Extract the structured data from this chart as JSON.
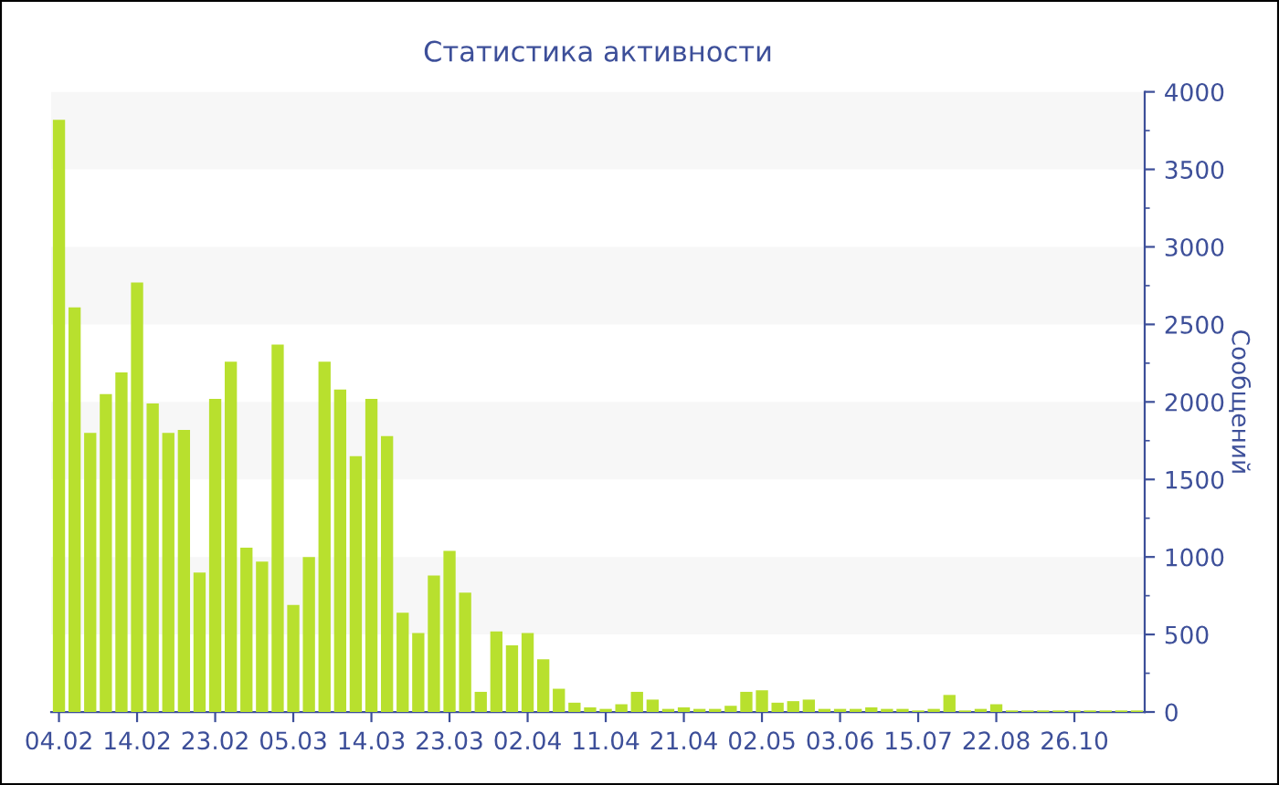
{
  "chart_data": {
    "type": "bar",
    "title": "Статистика активности",
    "ylabel": "Сообщений",
    "categories": [
      "04.02",
      null,
      null,
      null,
      null,
      "14.02",
      null,
      null,
      null,
      null,
      "23.02",
      null,
      null,
      null,
      null,
      "05.03",
      null,
      null,
      null,
      null,
      "14.03",
      null,
      null,
      null,
      null,
      "23.03",
      null,
      null,
      null,
      null,
      "02.04",
      null,
      null,
      null,
      null,
      "11.04",
      null,
      null,
      null,
      null,
      "21.04",
      null,
      null,
      null,
      null,
      "02.05",
      null,
      null,
      null,
      null,
      "03.06",
      null,
      null,
      null,
      null,
      "15.07",
      null,
      null,
      null,
      null,
      "22.08",
      null,
      null,
      null,
      null,
      "26.10",
      null,
      null,
      null,
      null
    ],
    "values": [
      3820,
      2610,
      1800,
      2050,
      2190,
      2770,
      1990,
      1800,
      1820,
      900,
      2020,
      2260,
      1060,
      970,
      2370,
      690,
      1000,
      2260,
      2080,
      1650,
      2020,
      1780,
      640,
      510,
      880,
      1040,
      770,
      130,
      520,
      430,
      510,
      340,
      150,
      60,
      30,
      20,
      50,
      130,
      80,
      20,
      30,
      20,
      20,
      40,
      130,
      140,
      60,
      70,
      80,
      20,
      20,
      20,
      30,
      20,
      20,
      10,
      20,
      110,
      10,
      20,
      50,
      10,
      10,
      10,
      10,
      10,
      10,
      10,
      10,
      10
    ],
    "color": "#b8e02e",
    "ylim": [
      0,
      4000
    ],
    "yticks": [
      0,
      500,
      1000,
      1500,
      2000,
      2500,
      3000,
      3500,
      4000
    ],
    "bands": [
      {
        "axis": "y",
        "from": 500,
        "to": 1000,
        "color": "#f7f7f7"
      },
      {
        "axis": "y",
        "from": 1500,
        "to": 2000,
        "color": "#f7f7f7"
      },
      {
        "axis": "y",
        "from": 2500,
        "to": 3000,
        "color": "#f7f7f7"
      },
      {
        "axis": "y",
        "from": 3500,
        "to": 4000,
        "color": "#f7f7f7"
      }
    ]
  }
}
